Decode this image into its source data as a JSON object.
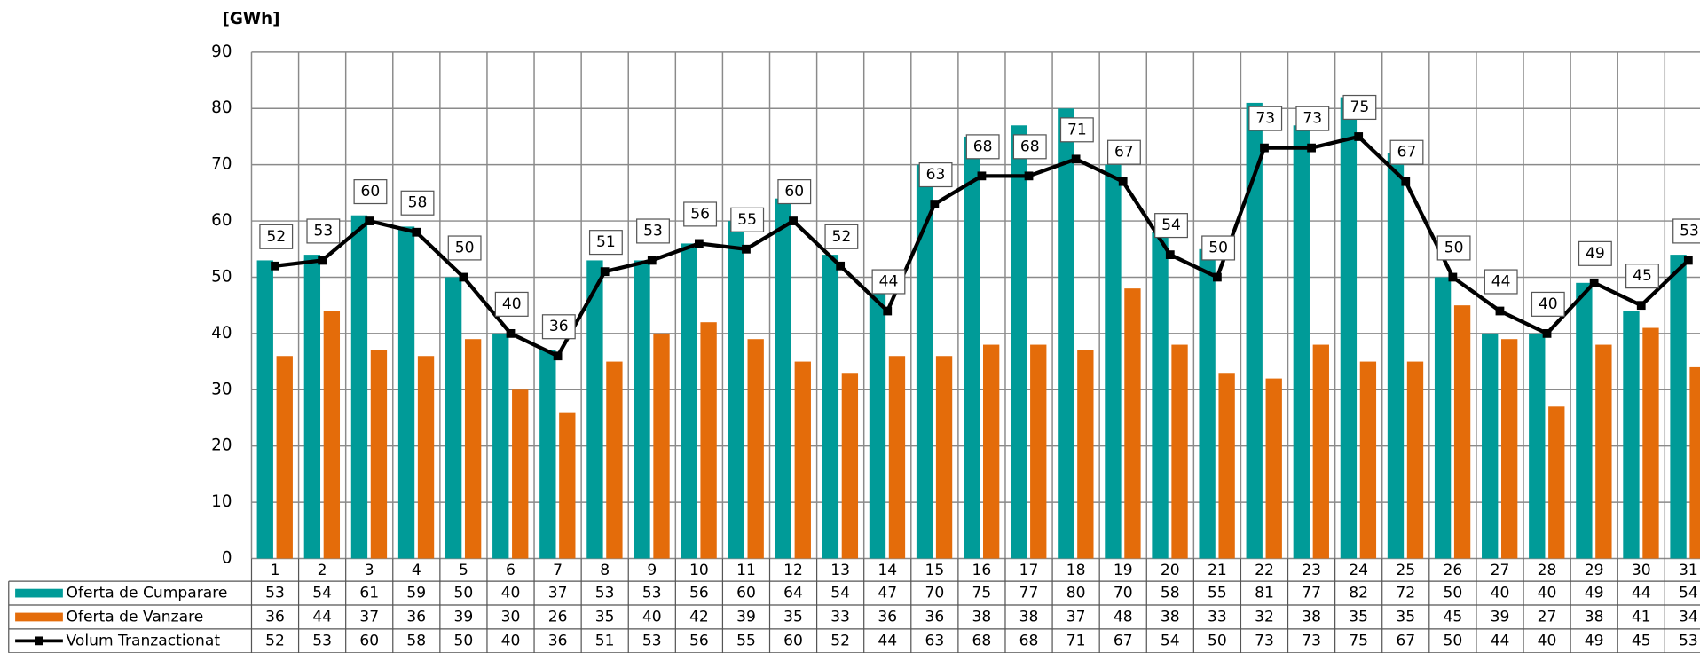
{
  "chart_data": {
    "type": "bar",
    "y_label": "[GWh]",
    "categories": [
      "1",
      "2",
      "3",
      "4",
      "5",
      "6",
      "7",
      "8",
      "9",
      "10",
      "11",
      "12",
      "13",
      "14",
      "15",
      "16",
      "17",
      "18",
      "19",
      "20",
      "21",
      "22",
      "23",
      "24",
      "25",
      "26",
      "27",
      "28",
      "29",
      "30",
      "31"
    ],
    "series": [
      {
        "name": "Oferta de Cumparare",
        "type": "bar",
        "color": "#009b98",
        "values": [
          53,
          54,
          61,
          59,
          50,
          40,
          37,
          53,
          53,
          56,
          60,
          64,
          54,
          47,
          70,
          75,
          77,
          80,
          70,
          58,
          55,
          81,
          77,
          82,
          72,
          50,
          40,
          40,
          49,
          44,
          54
        ]
      },
      {
        "name": "Oferta de Vanzare",
        "type": "bar",
        "color": "#e46c0a",
        "values": [
          36,
          44,
          37,
          36,
          39,
          30,
          26,
          35,
          40,
          42,
          39,
          35,
          33,
          36,
          36,
          38,
          38,
          37,
          48,
          38,
          33,
          32,
          38,
          35,
          35,
          45,
          39,
          27,
          38,
          41,
          34
        ]
      },
      {
        "name": "Volum Tranzactionat",
        "type": "line",
        "color": "#000000",
        "values": [
          52,
          53,
          60,
          58,
          50,
          40,
          36,
          51,
          53,
          56,
          55,
          60,
          52,
          44,
          63,
          68,
          68,
          71,
          67,
          54,
          50,
          73,
          73,
          75,
          67,
          50,
          44,
          40,
          49,
          45,
          53
        ]
      }
    ],
    "ylim": [
      0,
      90
    ],
    "yticks": [
      0,
      10,
      20,
      30,
      40,
      50,
      60,
      70,
      80,
      90
    ],
    "grid": true,
    "data_table": true
  }
}
